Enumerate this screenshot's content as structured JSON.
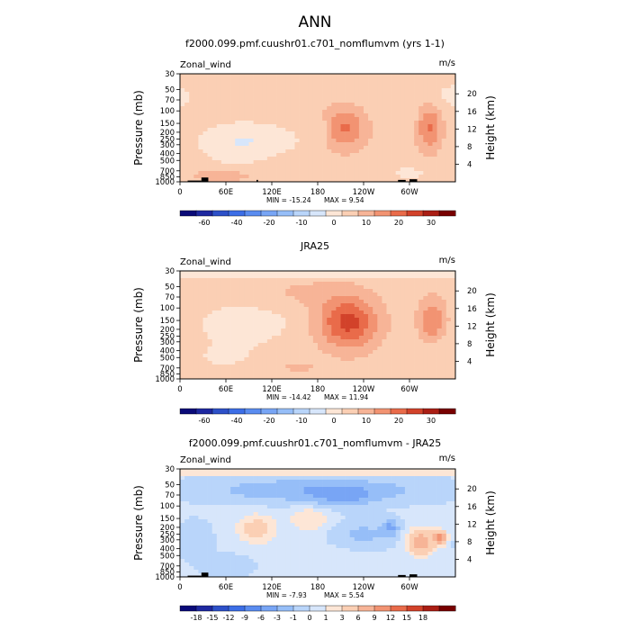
{
  "figure_title": "ANN",
  "chart_data": [
    {
      "type": "heatmap",
      "title": "f2000.099.pmf.cuushr01.c701_nomflumvm (yrs 1-1)",
      "variable": "Zonal_wind",
      "units": "m/s",
      "ylabel_left": "Pressure (mb)",
      "ylabel_right": "Height (km)",
      "xticks": [
        "0",
        "60E",
        "120E",
        "180",
        "120W",
        "60W"
      ],
      "pressure_ticks": [
        "30",
        "50",
        "70",
        "100",
        "150",
        "200",
        "250",
        "300",
        "400",
        "500",
        "700",
        "850",
        "1000"
      ],
      "height_ticks": [
        "20",
        "16",
        "12",
        "8",
        "4"
      ],
      "min_text": "MIN = -15.24",
      "max_text": "MAX = 9.54",
      "colorbar_levels": [
        -70,
        -60,
        -50,
        -40,
        -30,
        -20,
        -15,
        -10,
        -5,
        0,
        5,
        10,
        15,
        20,
        25,
        30
      ],
      "colorbar_labels": [
        "-60",
        "-40",
        "-20",
        "-10",
        "0",
        "10",
        "20",
        "30"
      ],
      "blobs": [
        {
          "lon": 95,
          "p": 260,
          "lw": 95,
          "lh": 0.55,
          "v": -2.6
        },
        {
          "lon": 40,
          "p": 70,
          "lw": 300,
          "lh": 0.6,
          "v": -0.7
        },
        {
          "lon": 70,
          "p": 350,
          "lw": 60,
          "lh": 0.7,
          "v": -1.4
        },
        {
          "lon": 188,
          "p": 190,
          "lw": 10,
          "lh": 0.35,
          "v": -2.2
        },
        {
          "lon": 300,
          "p": 750,
          "lw": 50,
          "lh": 0.3,
          "v": -1.6
        },
        {
          "lon": 305,
          "p": 160,
          "lw": 18,
          "lh": 0.55,
          "v": -1.2
        },
        {
          "lon": 355,
          "p": 60,
          "lw": 25,
          "lh": 0.4,
          "v": -1.4
        },
        {
          "lon": 215,
          "p": 170,
          "lw": 40,
          "lh": 0.7,
          "v": 5.9
        },
        {
          "lon": 325,
          "p": 170,
          "lw": 24,
          "lh": 0.75,
          "v": 6.1
        },
        {
          "lon": 55,
          "p": 820,
          "lw": 55,
          "lh": 0.2,
          "v": 3.0
        }
      ],
      "background": 1.2,
      "terrain": [
        {
          "lon": 10,
          "lon2": 28,
          "p": 960
        },
        {
          "lon": 28,
          "lon2": 37,
          "p": 870
        },
        {
          "lon": 100,
          "lon2": 102,
          "p": 940
        },
        {
          "lon": 285,
          "lon2": 295,
          "p": 940
        },
        {
          "lon": 300,
          "lon2": 310,
          "p": 920
        }
      ]
    },
    {
      "type": "heatmap",
      "title": "JRA25",
      "variable": "Zonal_wind",
      "units": "m/s",
      "ylabel_left": "Pressure (mb)",
      "ylabel_right": "Height (km)",
      "xticks": [
        "0",
        "60E",
        "120E",
        "180",
        "120W",
        "60W"
      ],
      "pressure_ticks": [
        "30",
        "50",
        "70",
        "100",
        "150",
        "200",
        "250",
        "300",
        "400",
        "500",
        "700",
        "850",
        "1000"
      ],
      "height_ticks": [
        "20",
        "16",
        "12",
        "8",
        "4"
      ],
      "min_text": "MIN = -14.42",
      "max_text": "MAX = 11.94",
      "colorbar_levels": [
        -70,
        -60,
        -50,
        -40,
        -30,
        -20,
        -15,
        -10,
        -5,
        0,
        5,
        10,
        15,
        20,
        25,
        30
      ],
      "colorbar_labels": [
        "-60",
        "-40",
        "-20",
        "-10",
        "0",
        "10",
        "20",
        "30"
      ],
      "blobs": [
        {
          "lon": 85,
          "p": 165,
          "lw": 80,
          "lh": 0.6,
          "v": -2.6
        },
        {
          "lon": 60,
          "p": 500,
          "lw": 80,
          "lh": 0.55,
          "v": -1.2
        },
        {
          "lon": 340,
          "p": 380,
          "lw": 40,
          "lh": 0.5,
          "v": -1.0
        },
        {
          "lon": 220,
          "p": 160,
          "lw": 55,
          "lh": 0.85,
          "v": 9.0
        },
        {
          "lon": 330,
          "p": 150,
          "lw": 25,
          "lh": 0.7,
          "v": 6.0
        },
        {
          "lon": 160,
          "p": 60,
          "lw": 90,
          "lh": 0.5,
          "v": 1.5
        },
        {
          "lon": 150,
          "p": 700,
          "lw": 70,
          "lh": 0.25,
          "v": 1.5
        }
      ],
      "background": 1.0,
      "top_band": -2.0,
      "terrain": []
    },
    {
      "type": "heatmap",
      "title": "f2000.099.pmf.cuushr01.c701_nomflumvm - JRA25",
      "variable": "Zonal_wind",
      "units": "m/s",
      "ylabel_left": "Pressure (mb)",
      "ylabel_right": "Height (km)",
      "xticks": [
        "0",
        "60E",
        "120E",
        "180",
        "120W",
        "60W"
      ],
      "pressure_ticks": [
        "30",
        "50",
        "70",
        "100",
        "150",
        "200",
        "250",
        "300",
        "400",
        "500",
        "700",
        "850",
        "1000"
      ],
      "height_ticks": [
        "20",
        "16",
        "12",
        "8",
        "4"
      ],
      "min_text": "MIN = -7.93",
      "max_text": "MAX = 5.54",
      "colorbar_levels": [
        -21,
        -18,
        -15,
        -12,
        -9,
        -6,
        -3,
        -1,
        0,
        1,
        3,
        6,
        9,
        12,
        15,
        18
      ],
      "colorbar_labels": [
        "-18",
        "-15",
        "-12",
        "-9",
        "-6",
        "-3",
        "-1",
        "0",
        "1",
        "3",
        "6",
        "9",
        "12",
        "15",
        "18"
      ],
      "blobs": [
        {
          "lon": 180,
          "p": 60,
          "lw": 180,
          "lh": 0.35,
          "v": -4.0
        },
        {
          "lon": 215,
          "p": 75,
          "lw": 50,
          "lh": 0.3,
          "v": -3.5
        },
        {
          "lon": 275,
          "p": 200,
          "lw": 14,
          "lh": 0.25,
          "v": -4.5
        },
        {
          "lon": 240,
          "p": 250,
          "lw": 50,
          "lh": 0.4,
          "v": -2.2
        },
        {
          "lon": 100,
          "p": 210,
          "lw": 35,
          "lh": 0.45,
          "v": 2.0
        },
        {
          "lon": 170,
          "p": 150,
          "lw": 35,
          "lh": 0.4,
          "v": 1.4
        },
        {
          "lon": 315,
          "p": 320,
          "lw": 25,
          "lh": 0.4,
          "v": 4.0
        },
        {
          "lon": 340,
          "p": 280,
          "lw": 12,
          "lh": 0.2,
          "v": 5.5
        },
        {
          "lon": 20,
          "p": 300,
          "lw": 25,
          "lh": 0.5,
          "v": -1.5
        },
        {
          "lon": 200,
          "p": 600,
          "lw": 60,
          "lh": 0.4,
          "v": 0.6
        },
        {
          "lon": 60,
          "p": 700,
          "lw": 40,
          "lh": 0.3,
          "v": -1.3
        }
      ],
      "background": -0.6,
      "top_band": 0.3,
      "terrain": [
        {
          "lon": 10,
          "lon2": 28,
          "p": 960
        },
        {
          "lon": 28,
          "lon2": 37,
          "p": 870
        },
        {
          "lon": 285,
          "lon2": 295,
          "p": 940
        },
        {
          "lon": 300,
          "lon2": 310,
          "p": 920
        }
      ]
    }
  ],
  "colors": {
    "palette": [
      "#0a0a78",
      "#1e28a0",
      "#2d50c8",
      "#3c6ee6",
      "#5a8cf0",
      "#78a5f5",
      "#96bef8",
      "#b9d5fa",
      "#d7e6fb",
      "#fde6d6",
      "#fbcfb4",
      "#f7b497",
      "#f29372",
      "#e96b4a",
      "#d2422a",
      "#aa1e14",
      "#780000"
    ]
  }
}
